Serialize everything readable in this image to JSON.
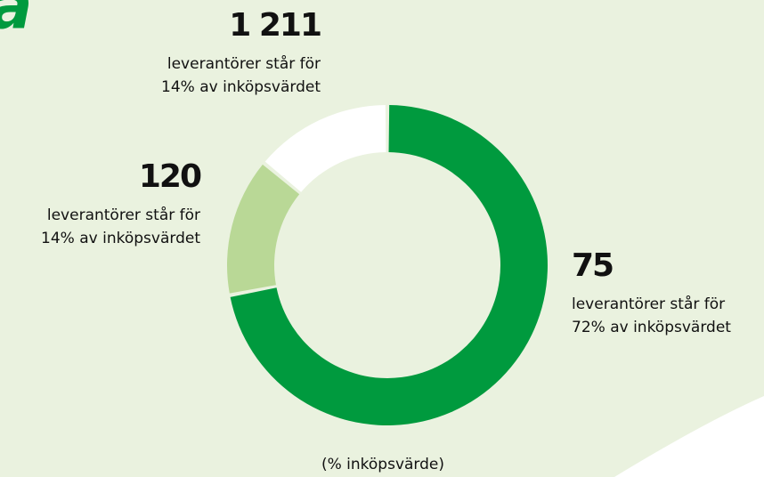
{
  "chart_data": {
    "type": "donut",
    "title": "a",
    "categories": [
      "75",
      "120",
      "1 211"
    ],
    "annotations": [
      [
        "leverantörer står för",
        "72% av inköpsvärdet"
      ],
      [
        "leverantörer står för",
        "14% av inköpsvärdet"
      ],
      [
        "leverantörer står för",
        "14% av inköpsvärdet"
      ]
    ],
    "values": [
      72,
      14,
      14
    ],
    "colors": [
      "#009a3e",
      "#b9d896",
      "#ffffff"
    ],
    "footer": "(% inköpsvärde)"
  }
}
